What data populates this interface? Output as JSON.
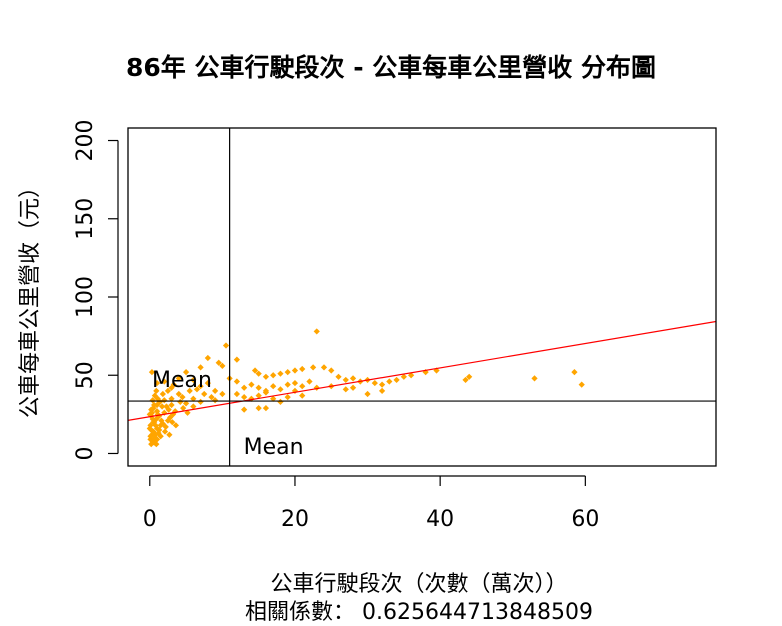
{
  "chart_data": {
    "type": "scatter",
    "title": "86年 公車行駛段次 - 公車每車公里營收 分布圖",
    "xlabel": "公車行駛段次（次數（萬次））",
    "ylabel": "公車每車公里營收（元）",
    "subtitle": "相關係數： 0.625644713848509",
    "xlim": [
      -3,
      78
    ],
    "ylim": [
      -8,
      208
    ],
    "xticks": [
      0,
      20,
      40,
      60
    ],
    "yticks": [
      0,
      50,
      100,
      150,
      200
    ],
    "point_color": "#FFA500",
    "line_color": "#FF0000",
    "mean_x": 11,
    "mean_y": 33.5,
    "mean_label": "Mean",
    "regression": {
      "intercept": 23.5,
      "slope": 0.78
    },
    "points": [
      [
        23,
        78
      ],
      [
        10.5,
        69
      ],
      [
        8,
        61
      ],
      [
        9.5,
        58
      ],
      [
        10,
        56
      ],
      [
        12,
        60
      ],
      [
        14.5,
        53
      ],
      [
        15,
        51
      ],
      [
        16,
        49
      ],
      [
        17,
        50
      ],
      [
        18,
        51
      ],
      [
        19,
        52
      ],
      [
        20,
        53
      ],
      [
        21,
        54
      ],
      [
        22.5,
        55
      ],
      [
        24,
        55
      ],
      [
        25,
        53
      ],
      [
        26,
        49
      ],
      [
        27,
        47
      ],
      [
        28,
        48
      ],
      [
        29,
        46
      ],
      [
        30,
        47
      ],
      [
        31,
        45
      ],
      [
        32,
        44
      ],
      [
        33,
        46
      ],
      [
        34,
        47
      ],
      [
        35,
        49
      ],
      [
        36,
        50
      ],
      [
        38,
        52
      ],
      [
        39.5,
        53
      ],
      [
        44,
        49
      ],
      [
        43.5,
        47
      ],
      [
        53,
        48
      ],
      [
        58.5,
        52
      ],
      [
        59.5,
        44
      ],
      [
        11,
        48
      ],
      [
        12,
        46
      ],
      [
        13,
        42
      ],
      [
        14,
        44
      ],
      [
        15,
        42
      ],
      [
        16,
        40
      ],
      [
        17,
        43
      ],
      [
        18,
        41
      ],
      [
        19,
        44
      ],
      [
        20,
        45
      ],
      [
        21,
        43
      ],
      [
        22,
        46
      ],
      [
        20,
        40
      ],
      [
        19,
        36
      ],
      [
        21,
        37
      ],
      [
        23,
        42
      ],
      [
        25,
        43
      ],
      [
        27,
        41
      ],
      [
        28,
        42
      ],
      [
        30,
        38
      ],
      [
        32,
        40
      ],
      [
        12,
        38
      ],
      [
        13,
        36
      ],
      [
        14,
        35
      ],
      [
        15,
        37
      ],
      [
        16,
        39
      ],
      [
        18,
        33
      ],
      [
        17,
        35
      ],
      [
        13,
        28
      ],
      [
        15,
        29
      ],
      [
        16,
        29
      ],
      [
        1,
        45
      ],
      [
        2,
        46
      ],
      [
        3,
        42
      ],
      [
        4,
        48
      ],
      [
        5,
        52
      ],
      [
        6,
        47
      ],
      [
        7,
        43
      ],
      [
        8,
        45
      ],
      [
        9,
        40
      ],
      [
        10,
        38
      ],
      [
        7,
        55
      ],
      [
        6,
        35
      ],
      [
        5,
        32
      ],
      [
        4,
        38
      ],
      [
        3,
        35
      ],
      [
        2,
        34
      ],
      [
        1,
        31
      ],
      [
        0.5,
        29
      ],
      [
        0.3,
        26
      ],
      [
        0.2,
        24
      ],
      [
        0.4,
        22
      ],
      [
        0.6,
        20
      ],
      [
        0.8,
        18
      ],
      [
        1,
        16
      ],
      [
        0.2,
        15
      ],
      [
        0.5,
        14
      ],
      [
        0.3,
        12
      ],
      [
        0.7,
        10
      ],
      [
        0.1,
        9
      ],
      [
        0.4,
        8
      ],
      [
        0.6,
        7
      ],
      [
        0.2,
        6
      ],
      [
        1.2,
        13
      ],
      [
        1.5,
        11
      ],
      [
        1.8,
        19
      ],
      [
        2.2,
        17
      ],
      [
        2.5,
        21
      ],
      [
        2.8,
        23
      ],
      [
        3.2,
        25
      ],
      [
        3.5,
        27
      ],
      [
        1,
        27
      ],
      [
        1.3,
        24
      ],
      [
        0.9,
        22
      ],
      [
        1.6,
        21
      ],
      [
        2,
        26
      ],
      [
        0.4,
        34
      ],
      [
        0.7,
        37
      ],
      [
        0.9,
        40
      ],
      [
        1.1,
        35
      ],
      [
        1.4,
        33
      ],
      [
        1.7,
        30
      ],
      [
        2.3,
        30
      ],
      [
        2.6,
        28
      ],
      [
        3,
        31
      ],
      [
        4.2,
        33
      ],
      [
        4.5,
        36
      ],
      [
        5.5,
        40
      ],
      [
        6.5,
        41
      ],
      [
        7.5,
        38
      ],
      [
        8.5,
        36
      ],
      [
        9,
        34
      ],
      [
        0.3,
        52
      ],
      [
        0.1,
        18
      ],
      [
        0.5,
        20
      ],
      [
        0.8,
        12
      ],
      [
        1,
        9
      ],
      [
        1.3,
        15
      ],
      [
        0.2,
        28
      ],
      [
        0.6,
        31
      ],
      [
        1.8,
        38
      ],
      [
        2.5,
        40
      ],
      [
        3.3,
        44
      ],
      [
        4.6,
        29
      ],
      [
        5.2,
        26
      ],
      [
        6,
        30
      ],
      [
        7,
        33
      ],
      [
        0,
        25
      ],
      [
        0,
        16
      ],
      [
        0.1,
        11
      ],
      [
        0.9,
        6
      ],
      [
        1.1,
        25
      ],
      [
        1.5,
        18
      ],
      [
        2.1,
        14
      ],
      [
        2.7,
        12
      ],
      [
        3.1,
        20
      ],
      [
        3.6,
        18
      ]
    ]
  }
}
